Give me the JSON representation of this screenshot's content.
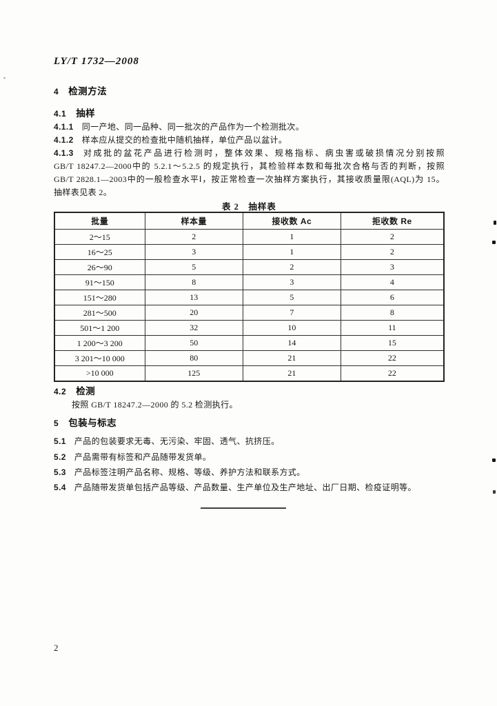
{
  "page": {
    "doc_code": "LY/T 1732—2008",
    "page_number": "2"
  },
  "sections": {
    "s4": {
      "num": "4",
      "title": "检测方法"
    },
    "s4_1": {
      "num": "4.1",
      "title": "抽样"
    },
    "s4_1_1": {
      "num": "4.1.1",
      "text": "同一产地、同一品种、同一批次的产品作为一个检测批次。"
    },
    "s4_1_2": {
      "num": "4.1.2",
      "text": "样本应从提交的检查批中随机抽样，单位产品以盆计。"
    },
    "s4_1_3": {
      "num": "4.1.3",
      "line1": "对成批的盆花产品进行检测时，整体效果、规格指标、病虫害或破损情况分别按照",
      "line2": "GB/T 18247.2—2000中的 5.2.1～5.2.5 的规定执行，其检验样本数和每批次合格与否的判断，按照",
      "line3": "GB/T 2828.1—2003中的一般检查水平Ⅰ，按正常检查一次抽样方案执行，其接收质量限(AQL)为 15。",
      "line4": "抽样表见表 2。"
    },
    "s4_2": {
      "num": "4.2",
      "title": "检测",
      "body": "按照 GB/T 18247.2—2000 的 5.2 检测执行。"
    },
    "s5": {
      "num": "5",
      "title": "包装与标志"
    },
    "s5_1": {
      "num": "5.1",
      "text": "产品的包装要求无毒、无污染、牢固、透气、抗挤压。"
    },
    "s5_2": {
      "num": "5.2",
      "text": "产品需带有标签和产品随带发货单。"
    },
    "s5_3": {
      "num": "5.3",
      "text": "产品标签注明产品名称、规格、等级、养护方法和联系方式。"
    },
    "s5_4": {
      "num": "5.4",
      "text": "产品随带发货单包括产品等级、产品数量、生产单位及生产地址、出厂日期、检疫证明等。"
    }
  },
  "table": {
    "title": "表 2　抽样表",
    "headers": [
      "批量",
      "样本量",
      "接收数 Ac",
      "拒收数 Re"
    ],
    "rows": [
      [
        "2～15",
        "2",
        "1",
        "2"
      ],
      [
        "16～25",
        "3",
        "1",
        "2"
      ],
      [
        "26～90",
        "5",
        "2",
        "3"
      ],
      [
        "91～150",
        "8",
        "3",
        "4"
      ],
      [
        "151～280",
        "13",
        "5",
        "6"
      ],
      [
        "281～500",
        "20",
        "7",
        "8"
      ],
      [
        "501～1 200",
        "32",
        "10",
        "11"
      ],
      [
        "1 200～3 200",
        "50",
        "14",
        "15"
      ],
      [
        "3 201～10 000",
        "80",
        "21",
        "22"
      ],
      [
        ">10 000",
        "125",
        "21",
        "22"
      ]
    ]
  }
}
